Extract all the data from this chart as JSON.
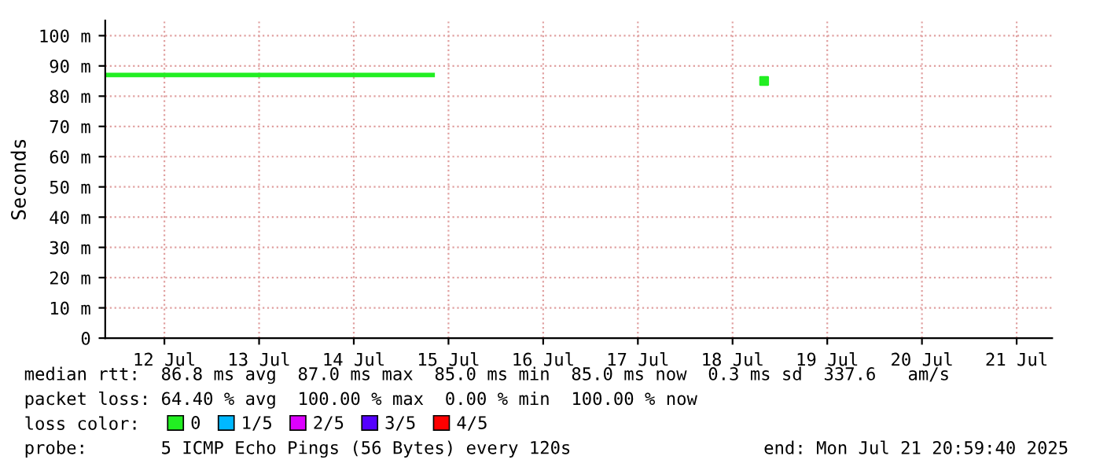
{
  "chart_data": {
    "type": "line",
    "ylabel": "Seconds",
    "legend_title": "loss color:",
    "legend": "bottom",
    "grid": true,
    "marker": "none",
    "line_style": "solid",
    "xlim": [
      "2025-07-11T21:00",
      "2025-07-21T21:00"
    ],
    "xticks": [
      {
        "value": "2025-07-12T12:00",
        "label": "12 Jul"
      },
      {
        "value": "2025-07-13T12:00",
        "label": "13 Jul"
      },
      {
        "value": "2025-07-14T12:00",
        "label": "14 Jul"
      },
      {
        "value": "2025-07-15T12:00",
        "label": "15 Jul"
      },
      {
        "value": "2025-07-16T12:00",
        "label": "16 Jul"
      },
      {
        "value": "2025-07-17T12:00",
        "label": "17 Jul"
      },
      {
        "value": "2025-07-18T12:00",
        "label": "18 Jul"
      },
      {
        "value": "2025-07-19T12:00",
        "label": "19 Jul"
      },
      {
        "value": "2025-07-20T12:00",
        "label": "20 Jul"
      },
      {
        "value": "2025-07-21T12:00",
        "label": "21 Jul"
      }
    ],
    "ylim": [
      0,
      105
    ],
    "yticks": [
      0,
      {
        "value": 10,
        "label": "10 m"
      },
      {
        "value": 20,
        "label": "20 m"
      },
      {
        "value": 30,
        "label": "30 m"
      },
      {
        "value": 40,
        "label": "40 m"
      },
      {
        "value": 50,
        "label": "50 m"
      },
      {
        "value": 60,
        "label": "60 m"
      },
      {
        "value": 70,
        "label": "70 m"
      },
      {
        "value": 80,
        "label": "80 m"
      },
      {
        "value": 90,
        "label": "90 m"
      },
      {
        "value": 100,
        "label": "100 m"
      }
    ],
    "series": [
      {
        "name": "0",
        "color": "#22ee22",
        "x": [
          "2025-07-11T21:00",
          "2025-07-15T08:00"
        ],
        "values": [
          87,
          87
        ]
      },
      {
        "type": "scatter",
        "marker": "square",
        "color": "#22ee22",
        "x": [
          "2025-07-18T20:00"
        ],
        "values": [
          85
        ]
      },
      {
        "name": "1/5",
        "color": "#00b8ff"
      },
      {
        "name": "2/5",
        "color": "#dd00ff"
      },
      {
        "name": "3/5",
        "color": "#5500ff"
      },
      {
        "name": "4/5",
        "color": "#ff0000"
      }
    ],
    "annotations": [
      "median rtt:  86.8 ms avg  87.0 ms max  85.0 ms min  85.0 ms now  0.3 ms sd  337.6   am/s",
      "packet loss: 64.40 % avg  100.00 % max  0.00 % min  100.00 % now",
      "probe:       5 ICMP Echo Pings (56 Bytes) every 120s",
      "end: Mon Jul 21 20:59:40 2025"
    ]
  }
}
